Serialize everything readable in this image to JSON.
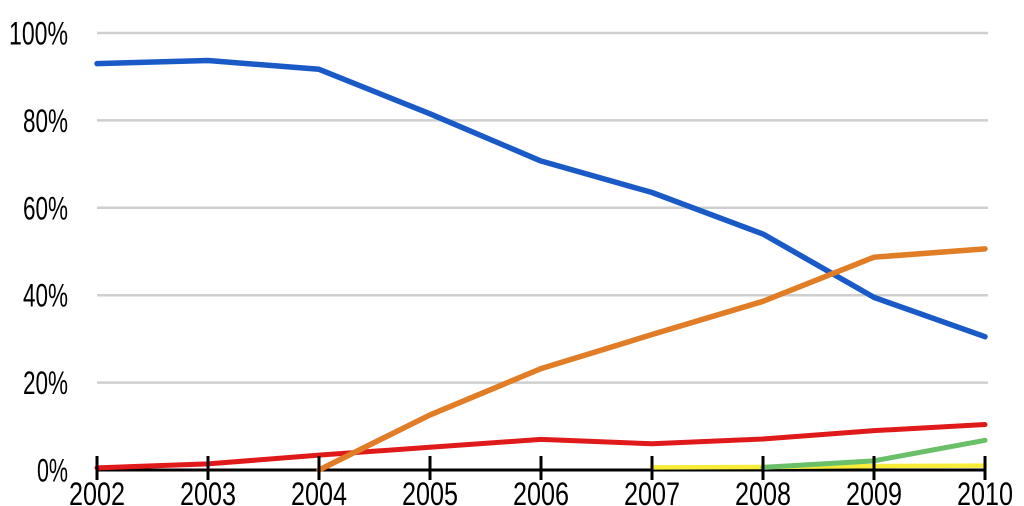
{
  "chart_data": {
    "type": "line",
    "title": "",
    "xlabel": "",
    "ylabel": "",
    "x": [
      2002,
      2003,
      2004,
      2005,
      2006,
      2007,
      2008,
      2009,
      2010
    ],
    "x_tick_labels": [
      "2002",
      "2003",
      "2004",
      "2005",
      "2006",
      "2007",
      "2008",
      "2009",
      "2010"
    ],
    "y_tick_labels": [
      "0%",
      "20%",
      "40%",
      "60%",
      "80%",
      "100%"
    ],
    "y_ticks": [
      0,
      20,
      40,
      60,
      80,
      100
    ],
    "ylim": [
      0,
      100
    ],
    "grid": true,
    "legend": "none",
    "series": [
      {
        "name": "blue-series",
        "color": "#1a5ac6",
        "stroke_width": 5.5,
        "values": [
          93,
          93.7,
          91.7,
          81.5,
          70.7,
          63.5,
          54,
          39.5,
          30.5
        ]
      },
      {
        "name": "red-series",
        "color": "#e01a1a",
        "stroke_width": 5,
        "values": [
          0.5,
          1.4,
          3.4,
          5.2,
          7,
          6,
          7.1,
          9,
          10.4
        ]
      },
      {
        "name": "yellow-series",
        "color": "#f8ec39",
        "stroke_width": 4.5,
        "values": [
          null,
          null,
          null,
          null,
          null,
          0.6,
          0.7,
          0.9,
          1.0
        ]
      },
      {
        "name": "green-series",
        "color": "#6abf69",
        "stroke_width": 5,
        "values": [
          null,
          null,
          null,
          null,
          null,
          null,
          0.6,
          2.1,
          6.8
        ]
      },
      {
        "name": "orange-series",
        "color": "#e07d26",
        "stroke_width": 5.5,
        "values": [
          null,
          null,
          0,
          12.6,
          23.2,
          31,
          38.6,
          48.7,
          50.6
        ]
      }
    ],
    "colors": {
      "gridline": "#cfcfcf",
      "axis": "#000000",
      "label": "#000000",
      "background": "#ffffff"
    }
  }
}
